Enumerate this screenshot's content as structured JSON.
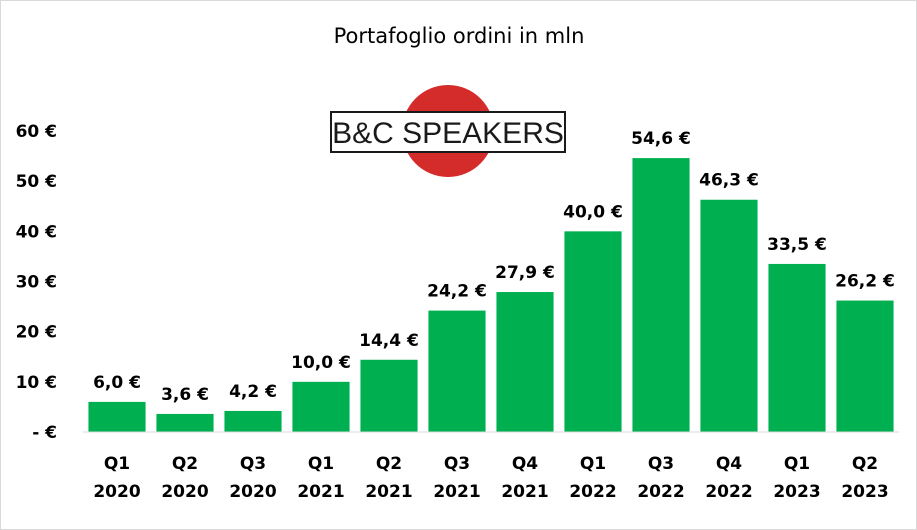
{
  "logo": {
    "text": "B&C SPEAKERS",
    "circle_color": "#d42b2b",
    "box_color": "#ffffff",
    "text_color": "#1a1a1a"
  },
  "chart_data": {
    "type": "bar",
    "title": "Portafoglio ordini in mln",
    "xlabel": "",
    "ylabel": "",
    "ylim": [
      0,
      60
    ],
    "yticks": [
      0,
      10,
      20,
      30,
      40,
      50,
      60
    ],
    "ytick_labels": [
      "- €",
      "10 €",
      "20 €",
      "30 €",
      "40 €",
      "50 €",
      "60 €"
    ],
    "categories": [
      [
        "Q1",
        "2020"
      ],
      [
        "Q2",
        "2020"
      ],
      [
        "Q3",
        "2020"
      ],
      [
        "Q1",
        "2021"
      ],
      [
        "Q2",
        "2021"
      ],
      [
        "Q3",
        "2021"
      ],
      [
        "Q4",
        "2021"
      ],
      [
        "Q1",
        "2022"
      ],
      [
        "Q3",
        "2022"
      ],
      [
        "Q4",
        "2022"
      ],
      [
        "Q1",
        "2023"
      ],
      [
        "Q2",
        "2023"
      ]
    ],
    "values": [
      6.0,
      3.6,
      4.2,
      10.0,
      14.4,
      24.2,
      27.9,
      40.0,
      54.6,
      46.3,
      33.5,
      26.2
    ],
    "data_labels": [
      "6,0 €",
      "3,6 €",
      "4,2 €",
      "10,0 €",
      "14,4 €",
      "24,2 €",
      "27,9 €",
      "40,0 €",
      "54,6 €",
      "46,3 €",
      "33,5 €",
      "26,2 €"
    ],
    "bar_color": "#00b050",
    "grid": false,
    "legend": "none"
  }
}
